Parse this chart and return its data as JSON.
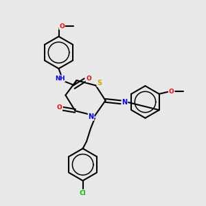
{
  "bg_color": "#e8e8e8",
  "atom_colors": {
    "C": "#000000",
    "N": "#0000ff",
    "O": "#ff0000",
    "S": "#ccaa00",
    "Cl": "#00bb00",
    "H": "#7a9a9a"
  },
  "bond_color": "#000000",
  "bond_width": 1.5
}
